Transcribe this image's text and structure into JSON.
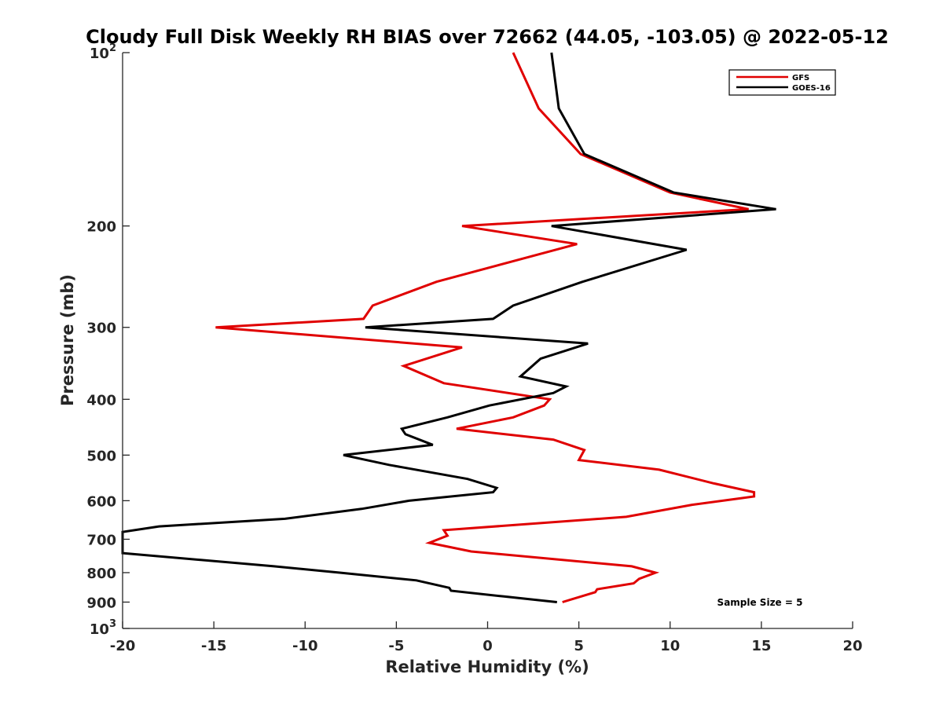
{
  "chart_data": {
    "type": "line",
    "title": "Cloudy Full Disk Weekly RH BIAS over 72662 (44.05, -103.05) @ 2022-05-12",
    "xlabel": "Relative Humidity (%)",
    "ylabel": "Pressure (mb)",
    "xlim": [
      -20,
      20
    ],
    "ylim": [
      100,
      1000
    ],
    "y_scale": "log",
    "y_reversed": true,
    "x_ticks": [
      -20,
      -15,
      -10,
      -5,
      0,
      5,
      10,
      15,
      20
    ],
    "x_tick_labels": [
      "-20",
      "-15",
      "-10",
      "-5",
      "0",
      "5",
      "10",
      "15",
      "20"
    ],
    "y_ticks": [
      100,
      200,
      300,
      400,
      500,
      600,
      700,
      800,
      900,
      1000
    ],
    "y_tick_labels": [
      {
        "base": "10",
        "sup": "2"
      },
      {
        "base": "200",
        "sup": ""
      },
      {
        "base": "300",
        "sup": ""
      },
      {
        "base": "400",
        "sup": ""
      },
      {
        "base": "500",
        "sup": ""
      },
      {
        "base": "600",
        "sup": ""
      },
      {
        "base": "700",
        "sup": ""
      },
      {
        "base": "800",
        "sup": ""
      },
      {
        "base": "900",
        "sup": ""
      },
      {
        "base": "10",
        "sup": "3"
      }
    ],
    "grid": false,
    "legend_position": "top-right",
    "annotation": "Sample Size = 5",
    "series": [
      {
        "name": "GFS",
        "color": "#e00000",
        "points": [
          [
            1.4,
            100
          ],
          [
            2.8,
            125
          ],
          [
            5.1,
            150
          ],
          [
            10.0,
            175
          ],
          [
            14.3,
            187
          ],
          [
            -1.4,
            200
          ],
          [
            4.9,
            215
          ],
          [
            -2.8,
            250
          ],
          [
            -6.3,
            275
          ],
          [
            -6.8,
            290
          ],
          [
            -14.9,
            300
          ],
          [
            -1.4,
            325
          ],
          [
            -4.6,
            350
          ],
          [
            -2.4,
            375
          ],
          [
            3.4,
            400
          ],
          [
            3.1,
            410
          ],
          [
            1.4,
            430
          ],
          [
            -1.7,
            450
          ],
          [
            3.6,
            470
          ],
          [
            5.3,
            490
          ],
          [
            5.0,
            510
          ],
          [
            9.4,
            530
          ],
          [
            12.4,
            560
          ],
          [
            14.6,
            580
          ],
          [
            14.6,
            590
          ],
          [
            11.2,
            610
          ],
          [
            7.6,
            640
          ],
          [
            -2.4,
            675
          ],
          [
            -2.2,
            690
          ],
          [
            -3.2,
            710
          ],
          [
            -0.9,
            735
          ],
          [
            7.9,
            780
          ],
          [
            9.2,
            800
          ],
          [
            8.3,
            820
          ],
          [
            8.0,
            835
          ],
          [
            6.0,
            855
          ],
          [
            5.9,
            865
          ],
          [
            4.1,
            900
          ]
        ]
      },
      {
        "name": "GOES-16",
        "color": "#000000",
        "points": [
          [
            3.5,
            100
          ],
          [
            3.9,
            125
          ],
          [
            5.3,
            150
          ],
          [
            10.2,
            175
          ],
          [
            15.8,
            187
          ],
          [
            3.5,
            200
          ],
          [
            10.9,
            220
          ],
          [
            5.2,
            250
          ],
          [
            1.4,
            275
          ],
          [
            0.3,
            290
          ],
          [
            -6.7,
            300
          ],
          [
            5.5,
            320
          ],
          [
            2.9,
            340
          ],
          [
            1.8,
            365
          ],
          [
            4.3,
            380
          ],
          [
            3.6,
            390
          ],
          [
            0.1,
            410
          ],
          [
            -2.2,
            430
          ],
          [
            -4.7,
            450
          ],
          [
            -4.5,
            460
          ],
          [
            -3.0,
            480
          ],
          [
            -7.9,
            500
          ],
          [
            -5.4,
            520
          ],
          [
            -1.1,
            550
          ],
          [
            0.5,
            570
          ],
          [
            0.3,
            580
          ],
          [
            -4.3,
            600
          ],
          [
            -6.9,
            620
          ],
          [
            -11.1,
            645
          ],
          [
            -18.0,
            665
          ],
          [
            -20.0,
            680
          ],
          [
            -20.0,
            740
          ],
          [
            -11.7,
            780
          ],
          [
            -8.1,
            800
          ],
          [
            -3.9,
            825
          ],
          [
            -2.1,
            850
          ],
          [
            -2.0,
            860
          ],
          [
            0.9,
            880
          ],
          [
            3.8,
            900
          ]
        ]
      }
    ]
  }
}
